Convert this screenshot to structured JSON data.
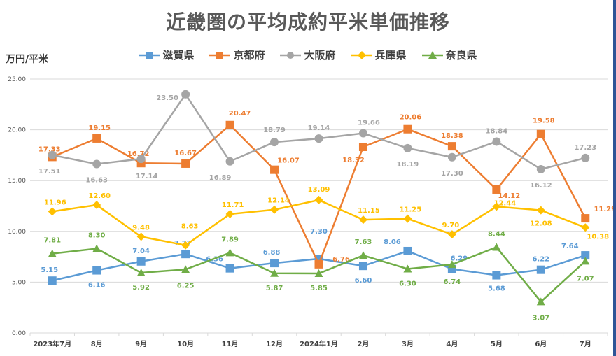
{
  "chart_data": {
    "type": "line",
    "title": "近畿圏の平均成約平米単価推移",
    "ylabel": "万円/平米",
    "xlabel": "",
    "ylim": [
      0,
      25
    ],
    "yticks": [
      "0.00",
      "5.00",
      "10.00",
      "15.00",
      "20.00",
      "25.00"
    ],
    "categories": [
      "2023年7月",
      "8月",
      "9月",
      "10月",
      "11月",
      "12月",
      "2024年1月",
      "2月",
      "3月",
      "4月",
      "5月",
      "6月",
      "7月"
    ],
    "legend_position": "top",
    "series": [
      {
        "name": "滋賀県",
        "color": "#5b9bd5",
        "marker": "square",
        "values": [
          5.15,
          6.16,
          7.04,
          7.77,
          6.36,
          6.88,
          7.3,
          6.6,
          8.06,
          6.29,
          5.68,
          6.22,
          7.64
        ],
        "labels": [
          "5.15",
          "6.16",
          "7.04",
          "7.77",
          "6.36",
          "6.88",
          "7.30",
          "6.60",
          "8.06",
          "6.29",
          "5.68",
          "6.22",
          "7.64"
        ]
      },
      {
        "name": "京都府",
        "color": "#ed7d31",
        "marker": "square",
        "values": [
          17.33,
          19.15,
          16.72,
          16.67,
          20.47,
          16.07,
          6.76,
          18.32,
          20.06,
          18.38,
          14.12,
          19.58,
          11.29
        ],
        "labels": [
          "17.33",
          "19.15",
          "16.72",
          "16.67",
          "20.47",
          "16.07",
          "6.76",
          "18.32",
          "20.06",
          "18.38",
          "14.12",
          "19.58",
          "11.29"
        ]
      },
      {
        "name": "大阪府",
        "color": "#a5a5a5",
        "marker": "circle",
        "values": [
          17.51,
          16.63,
          17.14,
          23.5,
          16.89,
          18.79,
          19.14,
          19.66,
          18.19,
          17.3,
          18.84,
          16.12,
          17.23
        ],
        "labels": [
          "17.51",
          "16.63",
          "17.14",
          "23.50",
          "16.89",
          "18.79",
          "19.14",
          "19.66",
          "18.19",
          "17.30",
          "18.84",
          "16.12",
          "17.23"
        ]
      },
      {
        "name": "兵庫県",
        "color": "#ffc000",
        "marker": "diamond",
        "values": [
          11.96,
          12.6,
          9.48,
          8.63,
          11.71,
          12.14,
          13.09,
          11.15,
          11.25,
          9.7,
          12.44,
          12.08,
          10.38
        ],
        "labels": [
          "11.96",
          "12.60",
          "9.48",
          "8.63",
          "11.71",
          "12.14",
          "13.09",
          "11.15",
          "11.25",
          "9.70",
          "12.44",
          "12.08",
          "10.38"
        ]
      },
      {
        "name": "奈良県",
        "color": "#70ad47",
        "marker": "triangle",
        "values": [
          7.81,
          8.3,
          5.92,
          6.25,
          7.89,
          5.87,
          5.85,
          7.63,
          6.3,
          6.74,
          8.44,
          3.07,
          7.07
        ],
        "labels": [
          "7.81",
          "8.30",
          "5.92",
          "6.25",
          "7.89",
          "5.87",
          "5.85",
          "7.63",
          "6.30",
          "6.74",
          "8.44",
          "3.07",
          "7.07"
        ]
      }
    ]
  }
}
